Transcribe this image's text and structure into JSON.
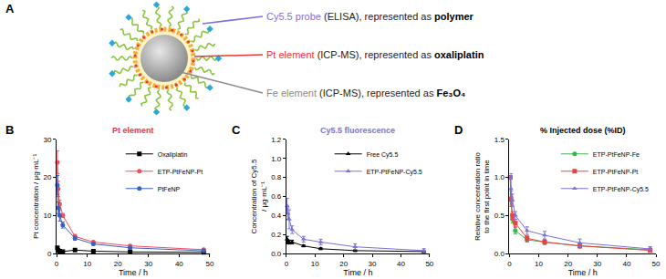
{
  "diagram": {
    "letter": "A",
    "labels": [
      {
        "name": "Cy5.5 probe",
        "detail": "(ELISA), represented as",
        "represents": "polymer"
      },
      {
        "name": "Pt element",
        "detail": "(ICP-MS), represented as",
        "represents": "oxaliplatin"
      },
      {
        "name": "Fe element",
        "detail": "(ICP-MS), represented as",
        "represents": "Fe₃O₄"
      }
    ]
  },
  "chart_data": [
    {
      "letter": "B",
      "type": "line",
      "title": "Pt element",
      "xlabel": "Time / h",
      "ylabel": [
        "Pt concentration / μg·mL⁻¹"
      ],
      "xlim": [
        0,
        50
      ],
      "xticks": [
        0,
        10,
        20,
        30,
        40,
        50
      ],
      "ylim": [
        0,
        30
      ],
      "yticks": [
        0,
        10,
        20,
        30
      ],
      "grid": false,
      "legend": "upper right",
      "x": [
        0.25,
        0.5,
        1,
        2,
        6,
        12,
        24,
        48
      ],
      "series": [
        {
          "name": "Oxaliplatin",
          "color": "#000000",
          "marker": "square",
          "line_style": "solid",
          "values": [
            1.5,
            0.8,
            0.6,
            0.5,
            0.9,
            0.6,
            0.4,
            0.3
          ],
          "errors": [
            0.3,
            0.2,
            0.1,
            0.1,
            0.1,
            0.1,
            0.1,
            0.1
          ]
        },
        {
          "name": "ETP-PtFeNP-Pt",
          "color": "#f0505a",
          "marker": "circle",
          "line_style": "solid",
          "values": [
            24,
            17,
            13,
            10,
            4.5,
            3,
            2,
            1
          ],
          "errors": [
            3,
            2,
            1,
            0.5,
            0.5,
            0.3,
            0.3,
            0.2
          ]
        },
        {
          "name": "PtFeNP",
          "color": "#3a5fc8",
          "marker": "circle",
          "line_style": "solid",
          "values": [
            18,
            12,
            10,
            7.5,
            4,
            2.5,
            1.5,
            0.7
          ],
          "errors": [
            2.5,
            1.5,
            1.5,
            0.8,
            0.5,
            0.3,
            0.3,
            0.2
          ]
        }
      ]
    },
    {
      "letter": "C",
      "type": "line",
      "title": "Cy5.5 fluorescence",
      "xlabel": "Time / h",
      "ylabel": [
        "Concentration of Cy5.5",
        "/ μg·mL⁻¹"
      ],
      "xlim": [
        0,
        50
      ],
      "xticks": [
        0,
        10,
        20,
        30,
        40,
        50
      ],
      "ylim": [
        0,
        1.2
      ],
      "yticks": [
        {
          "value": 0,
          "label": "0.0"
        },
        0.2,
        0.4,
        0.6,
        0.8,
        {
          "value": 1,
          "label": "1.0"
        },
        1.2
      ],
      "grid": false,
      "legend": "upper right",
      "x": [
        0.25,
        0.5,
        1,
        2,
        6,
        12,
        24,
        48
      ],
      "series": [
        {
          "name": "Free Cy5.5",
          "color": "#000000",
          "marker": "triangle",
          "line_style": "solid",
          "values": [
            0.15,
            0.12,
            0.12,
            0.12,
            0.08,
            0.05,
            0.03,
            0.02
          ],
          "errors": [
            0.03,
            0.02,
            0.02,
            0.02,
            0.01,
            0.01,
            0.01,
            0.01
          ]
        },
        {
          "name": "ETP-PtFeNP-Cy5.5",
          "color": "#7a73d6",
          "marker": "triangle",
          "line_style": "solid",
          "values": [
            0.5,
            0.42,
            0.36,
            0.25,
            0.15,
            0.12,
            0.07,
            0.03
          ],
          "errors": [
            0.08,
            0.06,
            0.1,
            0.04,
            0.03,
            0.03,
            0.03,
            0.02
          ]
        }
      ]
    },
    {
      "letter": "D",
      "type": "line",
      "title": "% Injected dose (%ID)",
      "xlabel": "Time / h",
      "ylabel": [
        "Relative concentration ratio",
        "to the first point in time"
      ],
      "xlim": [
        0,
        50
      ],
      "xticks": [
        0,
        10,
        20,
        30,
        40,
        50
      ],
      "ylim": [
        0,
        1.5
      ],
      "yticks": [
        {
          "value": 0,
          "label": "0.0"
        },
        0.5,
        {
          "value": 1,
          "label": "1.0"
        },
        1.5
      ],
      "grid": false,
      "legend": "upper right",
      "x": [
        0.25,
        0.5,
        1,
        2,
        6,
        12,
        24,
        48
      ],
      "series": [
        {
          "name": "ETP-PtFeNP-Fe",
          "color": "#3cb34a",
          "marker": "circle",
          "line_style": "solid",
          "values": [
            1.0,
            0.7,
            0.45,
            0.3,
            0.18,
            0.15,
            0.1,
            0.05
          ],
          "errors": [
            0.02,
            0.08,
            0.05,
            0.04,
            0.03,
            0.03,
            0.02,
            0.02
          ]
        },
        {
          "name": "ETP-PtFeNP-Pt",
          "color": "#ef4040",
          "marker": "square",
          "line_style": "solid",
          "values": [
            1.0,
            0.72,
            0.5,
            0.4,
            0.2,
            0.15,
            0.1,
            0.04
          ],
          "errors": [
            0.02,
            0.1,
            0.05,
            0.05,
            0.03,
            0.03,
            0.03,
            0.02
          ]
        },
        {
          "name": "ETP-PtFeNP-Cy5.5",
          "color": "#7a73d6",
          "marker": "triangle",
          "line_style": "solid",
          "values": [
            1.0,
            0.85,
            0.7,
            0.5,
            0.3,
            0.24,
            0.14,
            0.06
          ],
          "errors": [
            0.02,
            0.2,
            0.08,
            0.05,
            0.05,
            0.05,
            0.05,
            0.03
          ]
        }
      ]
    }
  ]
}
